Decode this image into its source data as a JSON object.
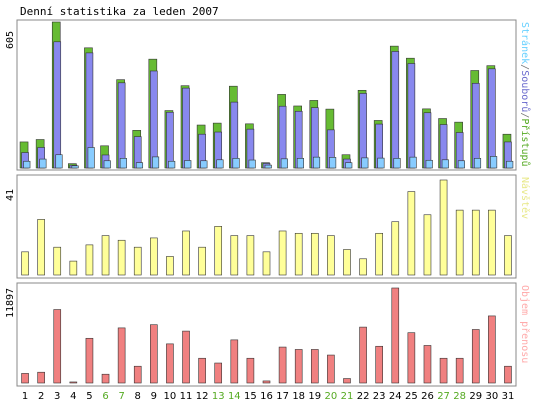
{
  "chart_data": [
    {
      "type": "bar",
      "title": "Denní statistika za leden 2007",
      "ylabel_value": "605",
      "legend_parts": [
        {
          "text": "Stránek",
          "color": "#66d0ff"
        },
        {
          "text": "/",
          "color": "#777777"
        },
        {
          "text": "Souborů",
          "color": "#6a6acd"
        },
        {
          "text": "/",
          "color": "#777777"
        },
        {
          "text": "Přístupů",
          "color": "#55aa22"
        }
      ],
      "ylim": [
        0,
        605
      ],
      "series": [
        {
          "name": "Přístupů",
          "color": "#66bb33",
          "values": [
            108,
            118,
            605,
            18,
            498,
            92,
            366,
            156,
            451,
            238,
            341,
            178,
            186,
            339,
            183,
            22,
            305,
            257,
            280,
            244,
            55,
            322,
            197,
            505,
            455,
            245,
            205,
            190,
            404,
            424,
            140
          ]
        },
        {
          "name": "Souborů",
          "color": "#8888ee",
          "values": [
            64,
            85,
            523,
            12,
            477,
            54,
            353,
            130,
            402,
            231,
            331,
            140,
            149,
            273,
            161,
            19,
            256,
            235,
            250,
            158,
            37,
            309,
            182,
            483,
            433,
            229,
            180,
            147,
            351,
            411,
            108
          ]
        },
        {
          "name": "Stránek",
          "color": "#88ccff",
          "values": [
            28,
            37,
            55,
            9,
            85,
            30,
            40,
            22,
            46,
            28,
            31,
            30,
            34,
            40,
            33,
            12,
            38,
            40,
            45,
            44,
            22,
            42,
            41,
            40,
            45,
            32,
            34,
            30,
            40,
            48,
            28
          ]
        }
      ]
    },
    {
      "type": "bar",
      "ylabel_value": "41",
      "legend": "Návštěv",
      "legend_color": "#e8e888",
      "ylim": [
        0,
        41
      ],
      "series": [
        {
          "name": "Návštěv",
          "color": "#ffff99",
          "values": [
            10,
            24,
            12,
            6,
            13,
            17,
            15,
            12,
            16,
            8,
            19,
            12,
            21,
            17,
            17,
            10,
            19,
            18,
            18,
            17,
            11,
            7,
            18,
            23,
            36,
            26,
            41,
            28,
            28,
            28,
            17
          ]
        }
      ]
    },
    {
      "type": "bar",
      "ylabel_value": "11897",
      "legend": "Objem přenosu",
      "legend_color": "#ffaaaa",
      "ylim": [
        0,
        11897
      ],
      "series": [
        {
          "name": "Objem přenosu",
          "color": "#f08080",
          "values": [
            1200,
            1350,
            9200,
            130,
            5600,
            1100,
            6900,
            2100,
            7300,
            4900,
            6500,
            3100,
            2500,
            5400,
            3100,
            260,
            4500,
            4200,
            4200,
            3500,
            560,
            7000,
            4600,
            11897,
            6300,
            4700,
            3100,
            3100,
            6700,
            8400,
            2100
          ]
        }
      ]
    }
  ],
  "x_labels": [
    "1",
    "2",
    "3",
    "4",
    "5",
    "6",
    "7",
    "8",
    "9",
    "10",
    "11",
    "12",
    "13",
    "14",
    "15",
    "16",
    "17",
    "18",
    "19",
    "20",
    "21",
    "22",
    "23",
    "24",
    "25",
    "26",
    "27",
    "28",
    "29",
    "30",
    "31"
  ],
  "weekend_days": [
    "6",
    "7",
    "13",
    "14",
    "20",
    "21",
    "27",
    "28"
  ],
  "colors": {
    "weekday_label": "#000000",
    "weekend_label": "#55aa22",
    "frame": "#888888",
    "bar_edge": "#333333"
  }
}
